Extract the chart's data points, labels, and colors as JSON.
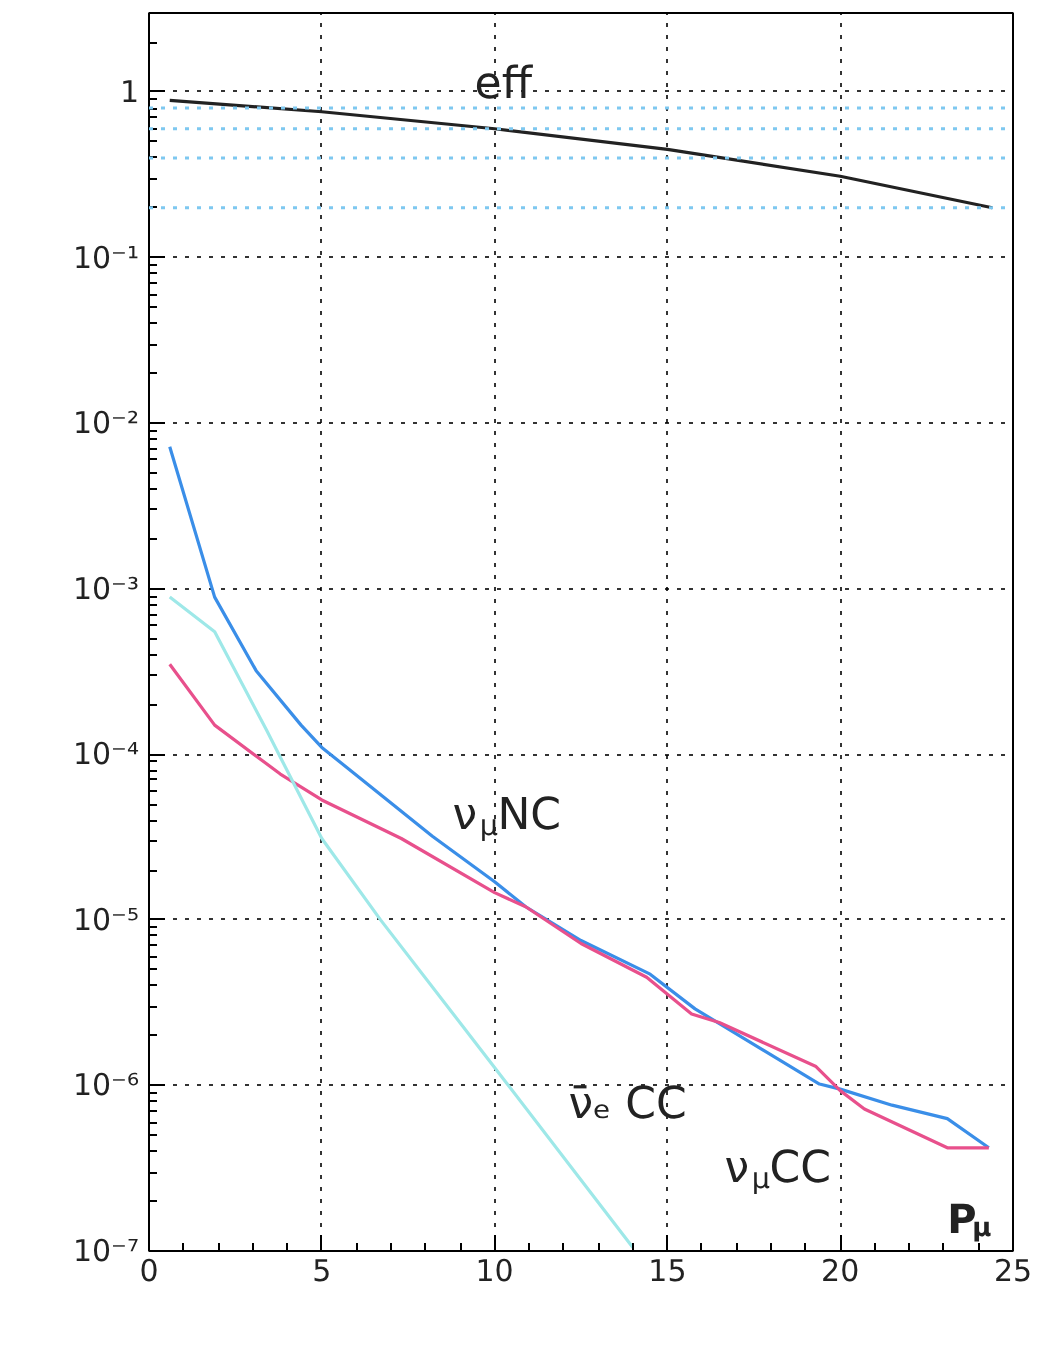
{
  "chart_data": {
    "type": "line",
    "xlabel": "P$_{μ}$",
    "log": "y",
    "grid": true,
    "legend": false,
    "marker": "none",
    "line_style": "solid",
    "xlim": [
      0,
      25
    ],
    "xticks": [
      0,
      5,
      10,
      15,
      20,
      25
    ],
    "ylim": [
      1e-07,
      3
    ],
    "yticks": [
      {
        "value": 1e-07,
        "label": "10⁻⁷"
      },
      {
        "value": 1e-06,
        "label": "10⁻⁶"
      },
      {
        "value": 1e-05,
        "label": "10⁻⁵"
      },
      {
        "value": 0.0001,
        "label": "10⁻⁴"
      },
      {
        "value": 0.001,
        "label": "10⁻³"
      },
      {
        "value": 0.01,
        "label": "10⁻²"
      },
      {
        "value": 0.1,
        "label": "10⁻¹"
      },
      1
    ],
    "ref_lines": [
      {
        "axis": "y",
        "value": 0.8,
        "color": "#7ec8f0",
        "line_style": "dotted"
      },
      {
        "axis": "y",
        "value": 0.6,
        "color": "#7ec8f0",
        "line_style": "dotted"
      },
      {
        "axis": "y",
        "value": 0.4,
        "color": "#7ec8f0",
        "line_style": "dotted"
      },
      {
        "axis": "y",
        "value": 0.2,
        "color": "#7ec8f0",
        "line_style": "dotted"
      }
    ],
    "series": [
      {
        "name": "eff",
        "color": "#222222",
        "x": [
          0.6,
          5,
          10,
          15,
          20,
          24.4
        ],
        "values": [
          0.89,
          0.76,
          0.6,
          0.45,
          0.31,
          0.2
        ]
      },
      {
        "name": "ν$_{μ}$NC",
        "color": "#3a8ee8",
        "x": [
          0.6,
          1.9,
          3.1,
          4.4,
          5.0,
          8.2,
          10.0,
          10.9,
          12.5,
          14.5,
          15.8,
          18.3,
          19.4,
          20.0,
          21.5,
          23.1,
          24.3
        ],
        "values": [
          0.0072,
          0.00089,
          0.00032,
          0.00015,
          0.00011,
          3.2e-05,
          1.7e-05,
          1.2e-05,
          7.5e-06,
          4.7e-06,
          2.9e-06,
          1.4e-06,
          1.02e-06,
          9.5e-07,
          7.6e-07,
          6.3e-07,
          4.2e-07
        ]
      },
      {
        "name": "ν$_{μ}$CC",
        "color": "#e8508c",
        "x": [
          0.6,
          1.9,
          3.8,
          5.0,
          7.3,
          10.0,
          10.9,
          12.5,
          14.4,
          15.7,
          16.5,
          19.3,
          20.0,
          20.7,
          23.1,
          24.3
        ],
        "values": [
          0.00035,
          0.00015,
          7.6e-05,
          5.3e-05,
          3.1e-05,
          1.46e-05,
          1.2e-05,
          7.2e-06,
          4.5e-06,
          2.7e-06,
          2.4e-06,
          1.3e-06,
          9.3e-07,
          7.2e-07,
          4.2e-07,
          4.2e-07
        ]
      },
      {
        "name": "ν̄ₑ CC",
        "color": "#9ee8e8",
        "x": [
          0.6,
          1.9,
          3.4,
          5.0,
          6.7,
          10.4,
          14.0
        ],
        "values": [
          0.00089,
          0.00055,
          0.00014,
          3.1e-05,
          1e-05,
          1e-06,
          1.05e-07
        ]
      }
    ]
  }
}
